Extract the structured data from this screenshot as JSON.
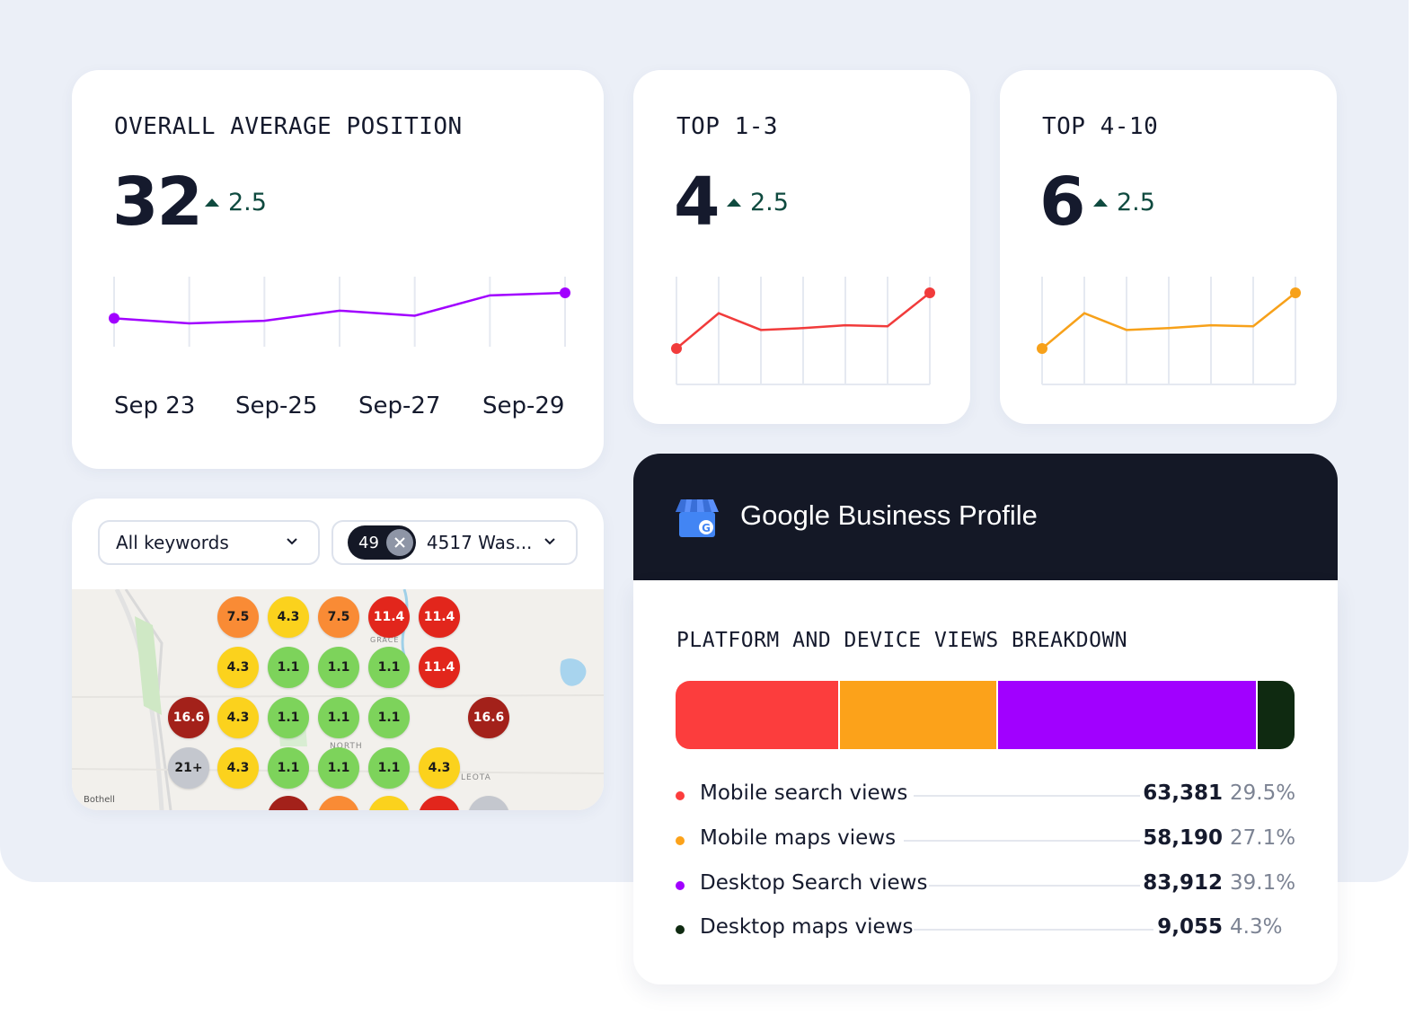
{
  "overall": {
    "title": "OVERALL AVERAGE POSITION",
    "value": "32",
    "delta": "2.5",
    "x_labels": [
      "Sep 23",
      "Sep-25",
      "Sep-27",
      "Sep-29"
    ],
    "series_color": "#a100ff",
    "points": [
      33,
      32,
      32.5,
      34.5,
      33.5,
      37.5,
      38
    ]
  },
  "top13": {
    "title": "TOP 1-3",
    "value": "4",
    "delta": "2.5",
    "series_color": "#f13b3b",
    "points": [
      2,
      5.8,
      4,
      4.2,
      4.5,
      4.4,
      8
    ]
  },
  "top410": {
    "title": "TOP 4-10",
    "value": "6",
    "delta": "2.5",
    "series_color": "#f7a11a",
    "points": [
      2,
      5.8,
      4,
      4.2,
      4.5,
      4.4,
      8
    ]
  },
  "map_panel": {
    "keyword_select": "All keywords",
    "location_chip": "49",
    "location_select": "4517 Was...",
    "map_labels": {
      "town": "Bothell",
      "grace": "GRACE",
      "north": "NORTH",
      "leota": "LEOTA"
    },
    "grid": [
      {
        "v": "7.5",
        "c": "#f98b35"
      },
      {
        "v": "4.3",
        "c": "#fbd21d"
      },
      {
        "v": "7.5",
        "c": "#f98b35"
      },
      {
        "v": "11.4",
        "c": "#e2261c"
      },
      {
        "v": "11.4",
        "c": "#e2261c"
      },
      {
        "v": "4.3",
        "c": "#fbd21d"
      },
      {
        "v": "1.1",
        "c": "#7dd35b"
      },
      {
        "v": "1.1",
        "c": "#7dd35b"
      },
      {
        "v": "1.1",
        "c": "#7dd35b"
      },
      {
        "v": "11.4",
        "c": "#e2261c"
      },
      {
        "v": "16.6",
        "c": "#a3211a"
      },
      {
        "v": "4.3",
        "c": "#fbd21d"
      },
      {
        "v": "1.1",
        "c": "#7dd35b"
      },
      {
        "v": "1.1",
        "c": "#7dd35b"
      },
      {
        "v": "1.1",
        "c": "#7dd35b"
      },
      {
        "v": "16.6",
        "c": "#a3211a"
      },
      {
        "v": "21+",
        "c": "#c4c7ce"
      },
      {
        "v": "4.3",
        "c": "#fbd21d"
      },
      {
        "v": "1.1",
        "c": "#7dd35b"
      },
      {
        "v": "1.1",
        "c": "#7dd35b"
      },
      {
        "v": "1.1",
        "c": "#7dd35b"
      },
      {
        "v": "4.3",
        "c": "#fbd21d"
      }
    ]
  },
  "gbp": {
    "title": "Google Business Profile",
    "section_title": "PLATFORM AND DEVICE VIEWS BREAKDOWN",
    "rows": [
      {
        "label": "Mobile search views",
        "value": "63,381",
        "pct": "29.5%",
        "share": 0.265,
        "color": "#fc3d3d"
      },
      {
        "label": "Mobile maps views",
        "value": "58,190",
        "pct": "27.1%",
        "share": 0.255,
        "color": "#fca21a"
      },
      {
        "label": "Desktop Search views",
        "value": "83,912",
        "pct": "39.1%",
        "share": 0.42,
        "color": "#a100ff"
      },
      {
        "label": "Desktop maps views",
        "value": "9,055",
        "pct": "4.3%",
        "share": 0.06,
        "color": "#0f2a11"
      }
    ]
  }
}
